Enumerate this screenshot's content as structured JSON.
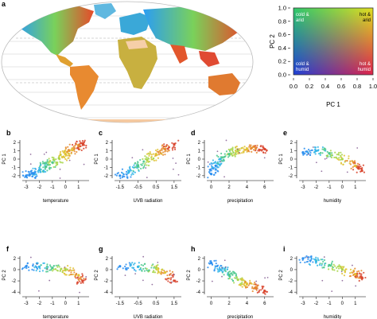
{
  "panel_letters": [
    "a",
    "b",
    "c",
    "d",
    "e",
    "f",
    "g",
    "h",
    "i"
  ],
  "legend": {
    "xlabel": "PC 1",
    "ylabel": "PC 2",
    "xticks": [
      "0.0",
      "0.2",
      "0.4",
      "0.6",
      "0.8",
      "1.0"
    ],
    "yticks": [
      "0.0",
      "0.2",
      "0.4",
      "0.6",
      "0.8",
      "1.0"
    ],
    "corners": {
      "top_left": [
        "cold &",
        "arid"
      ],
      "top_right": [
        "hot &",
        "arid"
      ],
      "bottom_left": [
        "cold &",
        "humid"
      ],
      "bottom_right": [
        "hot &",
        "humid"
      ]
    }
  },
  "chart_data": [
    {
      "panel": "b",
      "type": "scatter",
      "xlabel": "temperature",
      "ylabel": "PC 1",
      "xticks": [
        "-3",
        "-2",
        "-1",
        "0",
        "1"
      ],
      "yticks": [
        "2",
        "1",
        "0",
        "-1",
        "-2"
      ],
      "xlim": [
        -3.3,
        1.8
      ],
      "ylim": [
        -2.3,
        2.3
      ],
      "x": [
        -3,
        -2.5,
        -2,
        -1.5,
        -1,
        -0.5,
        0,
        0.5,
        1,
        1.3
      ],
      "y": [
        -2,
        -1.7,
        -1.3,
        -0.9,
        -0.4,
        0.1,
        0.6,
        1.1,
        1.6,
        1.9
      ]
    },
    {
      "panel": "c",
      "type": "scatter",
      "xlabel": "UVB radiation",
      "ylabel": "PC 1",
      "xticks": [
        "-1.5",
        "-0.5",
        "0.5",
        "1.5"
      ],
      "yticks": [
        "2",
        "1",
        "0",
        "-1",
        "-2"
      ],
      "xlim": [
        -1.8,
        1.9
      ],
      "ylim": [
        -2.3,
        2.3
      ],
      "x": [
        -1.5,
        -1,
        -0.5,
        0,
        0.5,
        1,
        1.5
      ],
      "y": [
        -2,
        -1.5,
        -0.8,
        -0.1,
        0.6,
        1.2,
        1.8
      ]
    },
    {
      "panel": "d",
      "type": "scatter",
      "xlabel": "precipitation",
      "ylabel": "PC 1",
      "xticks": [
        "0",
        "2",
        "4",
        "6"
      ],
      "yticks": [
        "2",
        "1",
        "0",
        "-1",
        "-2"
      ],
      "xlim": [
        -0.5,
        7
      ],
      "ylim": [
        -2.3,
        2.3
      ],
      "x": [
        0,
        0.5,
        1,
        2,
        3,
        4,
        5,
        6
      ],
      "y": [
        -1.8,
        -0.8,
        0,
        0.6,
        1,
        1.2,
        1.3,
        1.2
      ]
    },
    {
      "panel": "e",
      "type": "scatter",
      "xlabel": "humidity",
      "ylabel": "PC 1",
      "xticks": [
        "-3",
        "-2",
        "-1",
        "0",
        "1"
      ],
      "yticks": [
        "2",
        "1",
        "0",
        "-1",
        "-2"
      ],
      "xlim": [
        -3.3,
        1.8
      ],
      "ylim": [
        -2.3,
        2.3
      ],
      "x": [
        -3,
        -2,
        -1,
        0,
        1,
        1.5
      ],
      "y": [
        0.8,
        1,
        0.7,
        0,
        -0.8,
        -1.4
      ]
    },
    {
      "panel": "f",
      "type": "scatter",
      "xlabel": "temperature",
      "ylabel": "PC 2",
      "xticks": [
        "-3",
        "-2",
        "-1",
        "0",
        "1"
      ],
      "yticks": [
        "2",
        "0",
        "-2",
        "-4"
      ],
      "xlim": [
        -3.3,
        1.8
      ],
      "ylim": [
        -4.4,
        2.4
      ],
      "x": [
        -3,
        -2,
        -1,
        0,
        1,
        1.3
      ],
      "y": [
        0.6,
        0.5,
        0.3,
        0,
        -1,
        -2
      ]
    },
    {
      "panel": "g",
      "type": "scatter",
      "xlabel": "UVB radiation",
      "ylabel": "PC 2",
      "xticks": [
        "-1.5",
        "-0.5",
        "0.5",
        "1.5"
      ],
      "yticks": [
        "2",
        "0",
        "-2",
        "-4"
      ],
      "xlim": [
        -1.8,
        1.9
      ],
      "ylim": [
        -4.4,
        2.4
      ],
      "x": [
        -1.5,
        -0.5,
        0.5,
        1,
        1.5
      ],
      "y": [
        0.6,
        0.5,
        0.3,
        -0.5,
        -2
      ]
    },
    {
      "panel": "h",
      "type": "scatter",
      "xlabel": "precipitation",
      "ylabel": "PC 2",
      "xticks": [
        "0",
        "2",
        "4",
        "6"
      ],
      "yticks": [
        "2",
        "0",
        "-2",
        "-4"
      ],
      "xlim": [
        -0.5,
        7
      ],
      "ylim": [
        -4.4,
        2.4
      ],
      "x": [
        0,
        1,
        2,
        3,
        4,
        5,
        6
      ],
      "y": [
        1.2,
        0,
        -1,
        -1.8,
        -2.5,
        -3.2,
        -3.8
      ]
    },
    {
      "panel": "i",
      "type": "scatter",
      "xlabel": "humidity",
      "ylabel": "PC 2",
      "xticks": [
        "-3",
        "-2",
        "-1",
        "0",
        "1"
      ],
      "yticks": [
        "2",
        "0",
        "-2",
        "-4"
      ],
      "xlim": [
        -3.3,
        1.8
      ],
      "ylim": [
        -4.4,
        2.4
      ],
      "x": [
        -3,
        -2,
        -1,
        0,
        1,
        1.5
      ],
      "y": [
        2,
        1.4,
        0.8,
        0,
        -0.8,
        -1.4
      ]
    }
  ]
}
